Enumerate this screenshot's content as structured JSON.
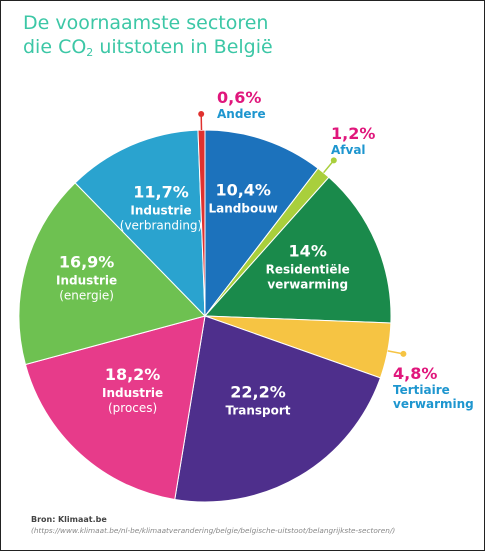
{
  "title": {
    "line1": "De voornaamste sectoren",
    "line2_before": "die CO",
    "line2_sub": "2",
    "line2_after": " uitstoten in België"
  },
  "source": {
    "label": "Bron:",
    "name": "Klimaat.be",
    "url": "(https://www.klimaat.be/nl-be/klimaatverandering/belgie/belgische-uitstoot/belangrijkste-sectoren/)"
  },
  "chart_data": {
    "type": "pie",
    "title": "De voornaamste sectoren die CO2 uitstoten in België",
    "unit": "%",
    "slices": [
      {
        "value": 10.4,
        "label": "10,4%",
        "name": [
          "Landbouw"
        ],
        "color": "#1c72bc",
        "placement": "inside",
        "text_color": "#ffffff"
      },
      {
        "value": 1.2,
        "label": "1,2%",
        "name": [
          "Afval"
        ],
        "color": "#a9cf3c",
        "placement": "outside",
        "text_color": "#e0177c",
        "name_color": "#1e96cf"
      },
      {
        "value": 14,
        "label": "14%",
        "name": [
          "Residentiële",
          "verwarming"
        ],
        "color": "#1a8a4b",
        "placement": "inside",
        "text_color": "#ffffff"
      },
      {
        "value": 4.8,
        "label": "4,8%",
        "name": [
          "Tertiaire",
          "verwarming"
        ],
        "color": "#f6c443",
        "placement": "outside",
        "text_color": "#e0177c",
        "name_color": "#1e96cf"
      },
      {
        "value": 22.2,
        "label": "22,2%",
        "name": [
          "Transport"
        ],
        "color": "#4e2f8c",
        "placement": "inside",
        "text_color": "#ffffff"
      },
      {
        "value": 18.2,
        "label": "18,2%",
        "name": [
          "Industrie",
          "(proces)"
        ],
        "color": "#e73b8a",
        "placement": "inside",
        "text_color": "#ffffff"
      },
      {
        "value": 16.9,
        "label": "16,9%",
        "name": [
          "Industrie",
          "(energie)"
        ],
        "color": "#6ec151",
        "placement": "inside",
        "text_color": "#ffffff"
      },
      {
        "value": 11.7,
        "label": "11,7%",
        "name": [
          "Industrie",
          "(verbranding)"
        ],
        "color": "#2aa3cf",
        "placement": "inside",
        "text_color": "#ffffff"
      },
      {
        "value": 0.6,
        "label": "0,6%",
        "name": [
          "Andere"
        ],
        "color": "#e0312f",
        "placement": "outside",
        "text_color": "#e0177c",
        "name_color": "#1e96cf"
      }
    ],
    "start": "top",
    "direction": "clockwise",
    "legend": "none"
  }
}
